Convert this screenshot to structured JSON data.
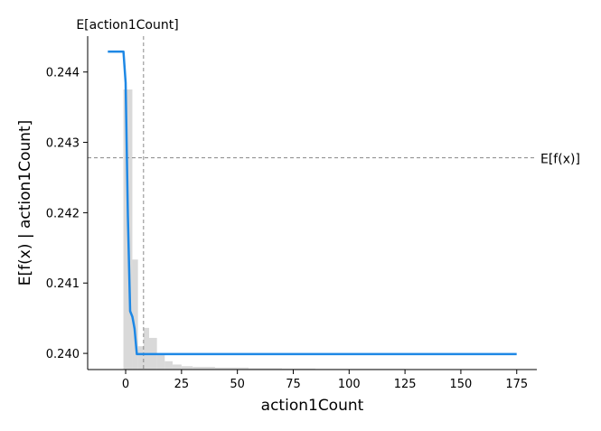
{
  "chart_data": {
    "type": "line",
    "xlabel": "action1Count",
    "ylabel": "E[f(x) | action1Count]",
    "xlim": [
      -17,
      184
    ],
    "ylim": [
      0.23977,
      0.24451
    ],
    "x_ticks": [
      0,
      25,
      50,
      75,
      100,
      125,
      150,
      175
    ],
    "y_ticks": [
      0.24,
      0.241,
      0.242,
      0.243,
      0.244
    ],
    "y_tick_labels": [
      "0.240",
      "0.241",
      "0.242",
      "0.243",
      "0.244"
    ],
    "series": [
      {
        "color": "#1e88e5",
        "x": [
          -8,
          -1,
          0,
          1,
          2,
          3,
          4,
          5,
          175
        ],
        "y": [
          0.24429,
          0.24429,
          0.24385,
          0.24195,
          0.2406,
          0.24052,
          0.24035,
          0.23999,
          0.23999
        ]
      }
    ],
    "histogram": {
      "color": "#cccccc",
      "bin_edges": [
        -1,
        3,
        5.5,
        8,
        10.5,
        14,
        17.5,
        21,
        25,
        30,
        40,
        55,
        70,
        85,
        100,
        125,
        150,
        175
      ],
      "relative_heights": [
        0.84,
        0.33,
        0.07,
        0.125,
        0.095,
        0.045,
        0.025,
        0.015,
        0.01,
        0.008,
        0.006,
        0.004,
        0.003,
        0.002,
        0.002,
        0.001,
        0.001
      ]
    },
    "reference_lines": {
      "x_mean": {
        "value": 8,
        "label": "E[action1Count]"
      },
      "y_mean": {
        "value": 0.24278,
        "label": "E[f(x)]"
      }
    },
    "grid": false,
    "legend": "none"
  }
}
